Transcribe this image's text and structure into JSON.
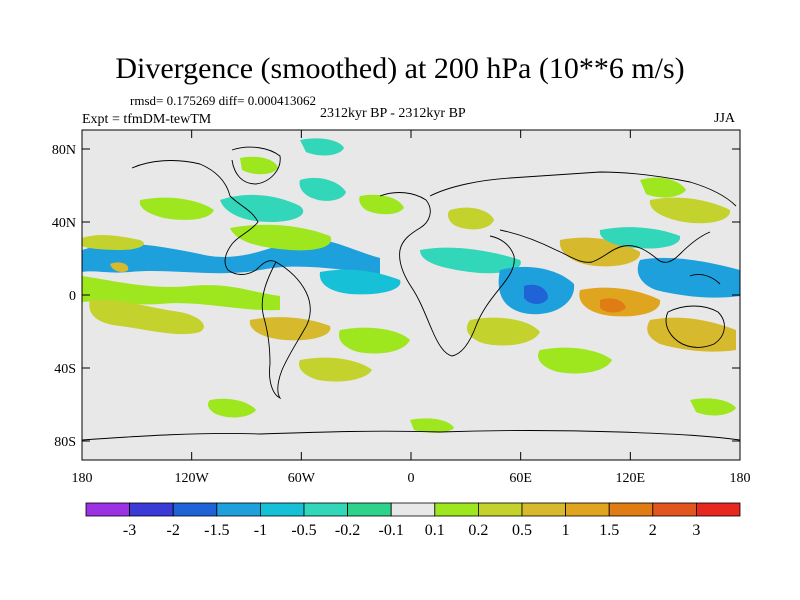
{
  "title": "Divergence (smoothed) at 200 hPa (10**6 m/s)",
  "stats": "rmsd= 0.175269 diff= 0.000413062",
  "expt": "Expt = tfmDM-tewTM",
  "period": "2312kyr BP - 2312kyr BP",
  "season": "JJA",
  "axes": {
    "y_labels": [
      "80N",
      "40N",
      "0",
      "40S",
      "80S"
    ],
    "x_labels": [
      "180",
      "120W",
      "60W",
      "0",
      "60E",
      "120E",
      "180"
    ]
  },
  "colorbar": {
    "colors": [
      "#9b32e3",
      "#3a3ad6",
      "#1f63d6",
      "#1ea0dc",
      "#16c0d6",
      "#32d6b9",
      "#2ed28a",
      "#e8e8e8",
      "#9ee61e",
      "#c3d22d",
      "#d6b92d",
      "#e0a51e",
      "#e07c14",
      "#e1551e",
      "#e6281e"
    ],
    "labels": [
      "-3",
      "-2",
      "-1.5",
      "-1",
      "-0.5",
      "-0.2",
      "-0.1",
      "0.1",
      "0.2",
      "0.5",
      "1",
      "1.5",
      "2",
      "3"
    ]
  }
}
